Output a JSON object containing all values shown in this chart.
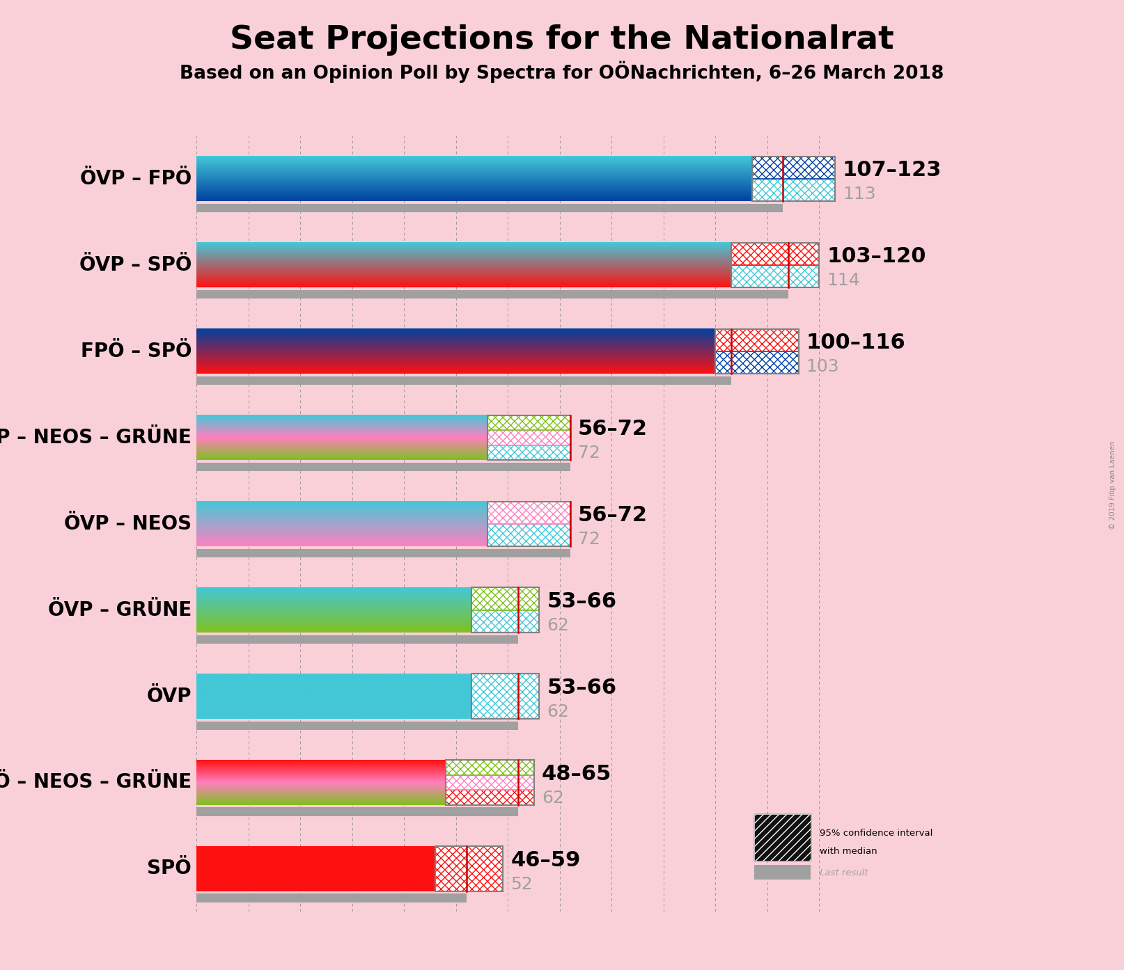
{
  "title": "Seat Projections for the Nationalrat",
  "subtitle": "Based on an Opinion Poll by Spectra for OÖNachrichten, 6–26 March 2018",
  "copyright": "© 2019 Filip van Laenen",
  "background_color": "#f9d0d8",
  "coalitions": [
    {
      "name": "ÖVP – FPÖ",
      "ci_low": 107,
      "ci_high": 123,
      "median": 113,
      "last_result": 113,
      "gradient_colors": [
        "#44c8d8",
        "#0040a0"
      ],
      "hatch_colors": [
        "#44c8d8",
        "#0040a0"
      ]
    },
    {
      "name": "ÖVP – SPÖ",
      "ci_low": 103,
      "ci_high": 120,
      "median": 114,
      "last_result": 114,
      "gradient_colors": [
        "#44c8d8",
        "#ff1010"
      ],
      "hatch_colors": [
        "#44c8d8",
        "#ff1010"
      ]
    },
    {
      "name": "FPÖ – SPÖ",
      "ci_low": 100,
      "ci_high": 116,
      "median": 103,
      "last_result": 103,
      "gradient_colors": [
        "#0040a0",
        "#ff1010"
      ],
      "hatch_colors": [
        "#0040a0",
        "#ff1010"
      ]
    },
    {
      "name": "ÖVP – NEOS – GRÜNE",
      "ci_low": 56,
      "ci_high": 72,
      "median": 72,
      "last_result": 72,
      "gradient_colors": [
        "#44c8d8",
        "#ff80c0",
        "#80c020"
      ],
      "hatch_colors": [
        "#44c8d8",
        "#ff80c0",
        "#80c020"
      ]
    },
    {
      "name": "ÖVP – NEOS",
      "ci_low": 56,
      "ci_high": 72,
      "median": 72,
      "last_result": 72,
      "gradient_colors": [
        "#44c8d8",
        "#ff80c0"
      ],
      "hatch_colors": [
        "#44c8d8",
        "#ff80c0"
      ]
    },
    {
      "name": "ÖVP – GRÜNE",
      "ci_low": 53,
      "ci_high": 66,
      "median": 62,
      "last_result": 62,
      "gradient_colors": [
        "#44c8d8",
        "#80c020"
      ],
      "hatch_colors": [
        "#44c8d8",
        "#80c020"
      ]
    },
    {
      "name": "ÖVP",
      "ci_low": 53,
      "ci_high": 66,
      "median": 62,
      "last_result": 62,
      "gradient_colors": [
        "#44c8d8",
        "#44c8d8"
      ],
      "hatch_colors": [
        "#44c8d8"
      ]
    },
    {
      "name": "SPÖ – NEOS – GRÜNE",
      "ci_low": 48,
      "ci_high": 65,
      "median": 62,
      "last_result": 62,
      "gradient_colors": [
        "#ff1010",
        "#ff80c0",
        "#80c020"
      ],
      "hatch_colors": [
        "#ff1010",
        "#ff80c0",
        "#80c020"
      ]
    },
    {
      "name": "SPÖ",
      "ci_low": 46,
      "ci_high": 59,
      "median": 52,
      "last_result": 52,
      "gradient_colors": [
        "#ff1010",
        "#ff1010"
      ],
      "hatch_colors": [
        "#ff1010"
      ]
    }
  ],
  "x_min": 0,
  "x_max": 130,
  "median_line_color": "#cc0000",
  "last_result_color": "#a0a0a0",
  "label_fontsize": 20,
  "range_fontsize": 22,
  "median_text_fontsize": 18,
  "title_fontsize": 34,
  "subtitle_fontsize": 19
}
